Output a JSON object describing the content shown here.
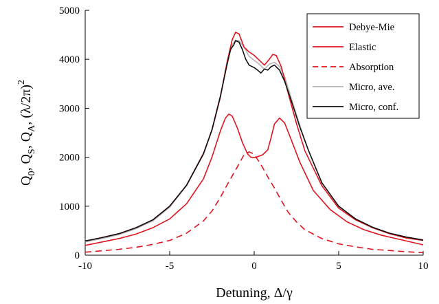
{
  "chart_data": {
    "type": "line",
    "xlabel": "Detuning, Δ/γ",
    "ylabel": "Q0, QS, QA, (λ/2π)2",
    "xlim": [
      -10,
      10
    ],
    "ylim": [
      0,
      5000
    ],
    "x_ticks": [
      -10,
      -5,
      0,
      5,
      10
    ],
    "y_ticks": [
      0,
      1000,
      2000,
      3000,
      4000,
      5000
    ],
    "x_tick_labels": [
      "-10",
      "-5",
      "0",
      "5",
      "10"
    ],
    "y_tick_labels": [
      "0",
      "1000",
      "2000",
      "3000",
      "4000",
      "5000"
    ],
    "grid": false,
    "legend_position": "top-right",
    "series": [
      {
        "name": "Debye-Mie",
        "color": "#e0141e",
        "dash": "solid",
        "points": [
          [
            -10,
            290
          ],
          [
            -9,
            360
          ],
          [
            -8,
            440
          ],
          [
            -7,
            560
          ],
          [
            -6,
            720
          ],
          [
            -5,
            1000
          ],
          [
            -4,
            1430
          ],
          [
            -3,
            2080
          ],
          [
            -2.5,
            2550
          ],
          [
            -2,
            3230
          ],
          [
            -1.6,
            3950
          ],
          [
            -1.3,
            4400
          ],
          [
            -1.1,
            4550
          ],
          [
            -0.9,
            4520
          ],
          [
            -0.6,
            4250
          ],
          [
            -0.3,
            4150
          ],
          [
            0,
            4080
          ],
          [
            0.3,
            3980
          ],
          [
            0.6,
            3880
          ],
          [
            0.9,
            4000
          ],
          [
            1.1,
            4100
          ],
          [
            1.3,
            4080
          ],
          [
            1.6,
            3850
          ],
          [
            2,
            3320
          ],
          [
            2.5,
            2690
          ],
          [
            3,
            2130
          ],
          [
            4,
            1420
          ],
          [
            5,
            960
          ],
          [
            6,
            720
          ],
          [
            7,
            560
          ],
          [
            8,
            440
          ],
          [
            9,
            350
          ],
          [
            10,
            300
          ]
        ]
      },
      {
        "name": "Elastic",
        "color": "#e0141e",
        "dash": "solid",
        "points": [
          [
            -10,
            200
          ],
          [
            -9,
            270
          ],
          [
            -8,
            340
          ],
          [
            -7,
            430
          ],
          [
            -6,
            560
          ],
          [
            -5,
            740
          ],
          [
            -4,
            1050
          ],
          [
            -3,
            1560
          ],
          [
            -2.5,
            2000
          ],
          [
            -2,
            2540
          ],
          [
            -1.7,
            2800
          ],
          [
            -1.5,
            2880
          ],
          [
            -1.3,
            2840
          ],
          [
            -1,
            2600
          ],
          [
            -0.7,
            2300
          ],
          [
            -0.4,
            2070
          ],
          [
            -0.2,
            2000
          ],
          [
            0,
            1990
          ],
          [
            0.2,
            2010
          ],
          [
            0.5,
            2050
          ],
          [
            0.8,
            2150
          ],
          [
            1,
            2400
          ],
          [
            1.2,
            2680
          ],
          [
            1.5,
            2800
          ],
          [
            1.8,
            2700
          ],
          [
            2.2,
            2350
          ],
          [
            2.7,
            1900
          ],
          [
            3.5,
            1320
          ],
          [
            4.5,
            930
          ],
          [
            5.5,
            680
          ],
          [
            6.5,
            520
          ],
          [
            7.5,
            410
          ],
          [
            8.5,
            330
          ],
          [
            10,
            210
          ]
        ]
      },
      {
        "name": "Absorption",
        "color": "#e0141e",
        "dash": "dashed",
        "points": [
          [
            -10,
            60
          ],
          [
            -9,
            90
          ],
          [
            -8,
            120
          ],
          [
            -7,
            160
          ],
          [
            -6,
            220
          ],
          [
            -5,
            300
          ],
          [
            -4,
            450
          ],
          [
            -3,
            700
          ],
          [
            -2.5,
            900
          ],
          [
            -2,
            1180
          ],
          [
            -1.5,
            1500
          ],
          [
            -1,
            1800
          ],
          [
            -0.6,
            2050
          ],
          [
            -0.3,
            2110
          ],
          [
            0,
            2060
          ],
          [
            0.4,
            1850
          ],
          [
            0.8,
            1600
          ],
          [
            1.2,
            1370
          ],
          [
            1.6,
            1120
          ],
          [
            2,
            880
          ],
          [
            2.5,
            680
          ],
          [
            3,
            520
          ],
          [
            4,
            340
          ],
          [
            5,
            230
          ],
          [
            6,
            170
          ],
          [
            7,
            120
          ],
          [
            8,
            95
          ],
          [
            9,
            70
          ],
          [
            10,
            50
          ]
        ]
      },
      {
        "name": "Micro, ave.",
        "color": "#b4b4b4",
        "dash": "solid",
        "points": [
          [
            -10,
            270
          ],
          [
            -9,
            340
          ],
          [
            -8,
            420
          ],
          [
            -7,
            540
          ],
          [
            -6,
            700
          ],
          [
            -5,
            980
          ],
          [
            -4,
            1420
          ],
          [
            -3,
            2060
          ],
          [
            -2.5,
            2550
          ],
          [
            -2,
            3220
          ],
          [
            -1.6,
            3930
          ],
          [
            -1.3,
            4300
          ],
          [
            -1.1,
            4390
          ],
          [
            -0.9,
            4380
          ],
          [
            -0.6,
            4250
          ],
          [
            -0.3,
            4060
          ],
          [
            0,
            3980
          ],
          [
            0.3,
            3900
          ],
          [
            0.6,
            3800
          ],
          [
            0.9,
            3900
          ],
          [
            1.2,
            3940
          ],
          [
            1.5,
            3850
          ],
          [
            1.8,
            3650
          ],
          [
            2.2,
            3200
          ],
          [
            2.7,
            2650
          ],
          [
            3.2,
            2150
          ],
          [
            4,
            1480
          ],
          [
            5,
            1000
          ],
          [
            6,
            740
          ],
          [
            7,
            570
          ],
          [
            8,
            450
          ],
          [
            9,
            370
          ],
          [
            10,
            310
          ]
        ]
      },
      {
        "name": "Micro, conf.",
        "color": "#111111",
        "dash": "solid",
        "points": [
          [
            -10,
            290
          ],
          [
            -9,
            360
          ],
          [
            -8,
            440
          ],
          [
            -7,
            560
          ],
          [
            -6,
            720
          ],
          [
            -5,
            1000
          ],
          [
            -4,
            1430
          ],
          [
            -3,
            2070
          ],
          [
            -2.5,
            2560
          ],
          [
            -2,
            3250
          ],
          [
            -1.6,
            3900
          ],
          [
            -1.4,
            4200
          ],
          [
            -1.2,
            4300
          ],
          [
            -1.1,
            4380
          ],
          [
            -0.9,
            4350
          ],
          [
            -0.7,
            4200
          ],
          [
            -0.5,
            4000
          ],
          [
            -0.3,
            3880
          ],
          [
            0,
            3830
          ],
          [
            0.2,
            3780
          ],
          [
            0.4,
            3720
          ],
          [
            0.6,
            3800
          ],
          [
            0.8,
            3780
          ],
          [
            1,
            3850
          ],
          [
            1.2,
            3880
          ],
          [
            1.5,
            3780
          ],
          [
            1.8,
            3550
          ],
          [
            2.2,
            3150
          ],
          [
            2.7,
            2620
          ],
          [
            3.2,
            2150
          ],
          [
            4,
            1480
          ],
          [
            5,
            1000
          ],
          [
            6,
            740
          ],
          [
            7,
            570
          ],
          [
            8,
            450
          ],
          [
            9,
            370
          ],
          [
            10,
            310
          ]
        ]
      }
    ]
  }
}
